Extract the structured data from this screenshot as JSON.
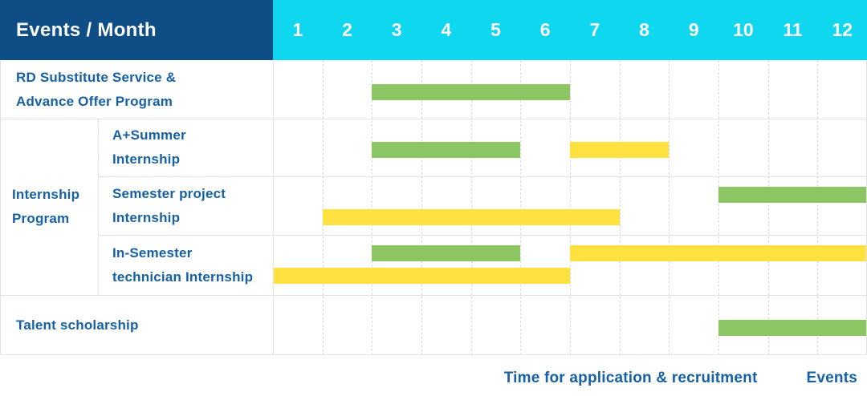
{
  "header": {
    "title": "Events / Month",
    "months": [
      "1",
      "2",
      "3",
      "4",
      "5",
      "6",
      "7",
      "8",
      "9",
      "10",
      "11",
      "12"
    ]
  },
  "group_label": "Internship\nProgram",
  "legend": {
    "items": [
      {
        "label": "Time for application & recruitment",
        "type": "application"
      },
      {
        "label": "Events",
        "type": "event"
      }
    ]
  },
  "colors": {
    "header_bg": "#0f4d87",
    "months_bg": "#0fd7ef",
    "application": "#8cc663",
    "event": "#ffe23f",
    "label_text": "#1660a5",
    "grid": "#e2e2e2"
  },
  "chart_data": {
    "type": "gantt",
    "title": "Events / Month",
    "x_axis": {
      "label": "Month",
      "ticks": [
        "1",
        "2",
        "3",
        "4",
        "5",
        "6",
        "7",
        "8",
        "9",
        "10",
        "11",
        "12"
      ],
      "range": [
        1,
        12
      ]
    },
    "legend_position": "bottom-right",
    "bar_types": {
      "application": "Time for application & recruitment",
      "event": "Events"
    },
    "rows": [
      {
        "label": "RD Substitute Service &\nAdvance Offer Program",
        "group": null,
        "bars": [
          {
            "type": "application",
            "start": 3,
            "end": 6,
            "lane": "center"
          }
        ]
      },
      {
        "label": "A+Summer\nInternship",
        "group": "Internship Program",
        "bars": [
          {
            "type": "application",
            "start": 3,
            "end": 5,
            "lane": "center"
          },
          {
            "type": "event",
            "start": 7,
            "end": 8,
            "lane": "center"
          }
        ]
      },
      {
        "label": "Semester project\nInternship",
        "group": "Internship Program",
        "bars": [
          {
            "type": "application",
            "start": 10,
            "end": 12,
            "lane": "top"
          },
          {
            "type": "event",
            "start": 2,
            "end": 7,
            "lane": "bottom"
          }
        ]
      },
      {
        "label": "In-Semester\ntechnician Internship",
        "group": "Internship Program",
        "bars": [
          {
            "type": "application",
            "start": 3,
            "end": 5,
            "lane": "top"
          },
          {
            "type": "event",
            "start": 7,
            "end": 12,
            "lane": "top"
          },
          {
            "type": "event",
            "start": 1,
            "end": 6,
            "lane": "bottom"
          }
        ]
      },
      {
        "label": "Talent scholarship",
        "group": null,
        "bars": [
          {
            "type": "application",
            "start": 10,
            "end": 12,
            "lane": "center"
          }
        ]
      }
    ]
  }
}
